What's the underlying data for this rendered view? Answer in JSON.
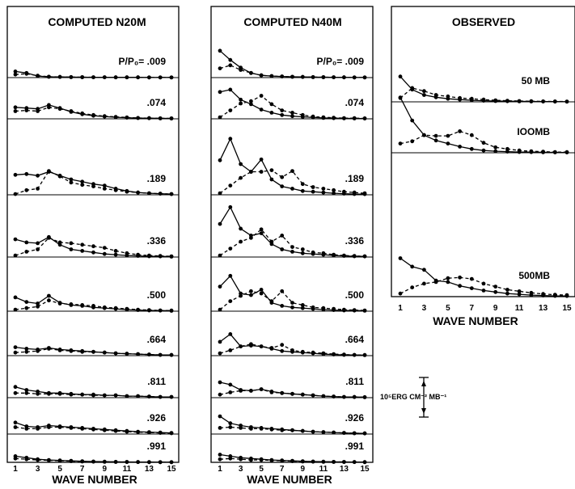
{
  "chart_data": [
    {
      "type": "line",
      "title": "COMPUTED N20M",
      "xlabel": "WAVE NUMBER",
      "x_ticks": [
        "1",
        "3",
        "5",
        "7",
        "9",
        "11",
        "13",
        "15"
      ],
      "x": [
        1,
        2,
        3,
        4,
        5,
        6,
        7,
        8,
        9,
        10,
        11,
        12,
        13,
        14,
        15
      ],
      "panels": [
        {
          "label": "P/P₀= .009",
          "solid": [
            0.8,
            0.6,
            0.2,
            0.1,
            0.08,
            0.06,
            0.05,
            0.04,
            0.04,
            0.03,
            0.03,
            0.03,
            0.02,
            0.02,
            0.02
          ],
          "dashed": [
            0.4,
            0.5,
            0.25,
            0.12,
            0.08,
            0.06,
            0.05,
            0.04,
            0.04,
            0.03,
            0.03,
            0.03,
            0.02,
            0.02,
            0.02
          ]
        },
        {
          "label": ".074",
          "solid": [
            1.5,
            1.4,
            1.3,
            1.8,
            1.4,
            0.9,
            0.6,
            0.4,
            0.3,
            0.2,
            0.15,
            0.1,
            0.08,
            0.06,
            0.05
          ],
          "dashed": [
            1.0,
            1.1,
            1.0,
            1.5,
            1.3,
            1.0,
            0.7,
            0.5,
            0.35,
            0.25,
            0.18,
            0.12,
            0.08,
            0.06,
            0.05
          ]
        },
        {
          "label": ".189",
          "solid": [
            2.6,
            2.7,
            2.5,
            3.0,
            2.5,
            2.0,
            1.7,
            1.4,
            1.2,
            0.8,
            0.5,
            0.3,
            0.2,
            0.15,
            0.1
          ],
          "dashed": [
            0.1,
            0.6,
            0.8,
            3.1,
            2.4,
            1.6,
            1.3,
            1.1,
            0.8,
            0.6,
            0.4,
            0.3,
            0.2,
            0.15,
            0.1
          ]
        },
        {
          "label": ".336",
          "solid": [
            2.3,
            1.9,
            1.8,
            2.6,
            1.6,
            1.0,
            0.8,
            0.6,
            0.4,
            0.3,
            0.2,
            0.15,
            0.1,
            0.08,
            0.05
          ],
          "dashed": [
            0.2,
            0.7,
            1.0,
            2.5,
            1.9,
            1.8,
            1.6,
            1.4,
            1.2,
            0.8,
            0.5,
            0.3,
            0.2,
            0.15,
            0.1
          ]
        },
        {
          "label": ".500",
          "solid": [
            1.8,
            1.2,
            1.0,
            2.0,
            1.1,
            0.8,
            0.7,
            0.5,
            0.4,
            0.3,
            0.2,
            0.15,
            0.1,
            0.08,
            0.05
          ],
          "dashed": [
            0.2,
            0.4,
            0.6,
            1.4,
            1.0,
            0.9,
            0.8,
            0.7,
            0.5,
            0.4,
            0.3,
            0.2,
            0.15,
            0.1,
            0.08
          ]
        },
        {
          "label": ".664",
          "solid": [
            1.1,
            0.9,
            0.8,
            1.0,
            0.8,
            0.7,
            0.6,
            0.5,
            0.4,
            0.3,
            0.25,
            0.2,
            0.15,
            0.1,
            0.08
          ],
          "dashed": [
            0.4,
            0.5,
            0.6,
            0.9,
            0.7,
            0.6,
            0.5,
            0.5,
            0.4,
            0.3,
            0.25,
            0.2,
            0.15,
            0.1,
            0.08
          ]
        },
        {
          "label": ".811",
          "solid": [
            1.4,
            1.0,
            0.8,
            0.6,
            0.6,
            0.5,
            0.4,
            0.4,
            0.3,
            0.3,
            0.2,
            0.2,
            0.15,
            0.1,
            0.1
          ],
          "dashed": [
            0.6,
            0.6,
            0.5,
            0.5,
            0.5,
            0.4,
            0.4,
            0.3,
            0.3,
            0.3,
            0.2,
            0.2,
            0.15,
            0.1,
            0.1
          ]
        },
        {
          "label": ".926",
          "solid": [
            1.5,
            1.0,
            0.9,
            1.1,
            1.0,
            0.9,
            0.8,
            0.7,
            0.6,
            0.5,
            0.4,
            0.3,
            0.25,
            0.2,
            0.15
          ],
          "dashed": [
            0.9,
            0.7,
            0.7,
            0.9,
            0.9,
            0.8,
            0.7,
            0.6,
            0.5,
            0.4,
            0.3,
            0.25,
            0.2,
            0.15,
            0.1
          ]
        },
        {
          "label": ".991",
          "solid": [
            0.8,
            0.6,
            0.4,
            0.3,
            0.25,
            0.2,
            0.15,
            0.1,
            0.08,
            0.06,
            0.05,
            0.04,
            0.03,
            0.02,
            0.02
          ],
          "dashed": [
            0.5,
            0.4,
            0.3,
            0.25,
            0.2,
            0.15,
            0.1,
            0.08,
            0.06,
            0.05,
            0.04,
            0.03,
            0.02,
            0.02,
            0.02
          ]
        }
      ]
    },
    {
      "type": "line",
      "title": "COMPUTED N40M",
      "xlabel": "WAVE NUMBER",
      "x_ticks": [
        "1",
        "3",
        "5",
        "7",
        "9",
        "11",
        "13",
        "15"
      ],
      "x": [
        1,
        2,
        3,
        4,
        5,
        6,
        7,
        8,
        9,
        10,
        11,
        12,
        13,
        14,
        15
      ],
      "panels": [
        {
          "label": "P/P₀= .009",
          "solid": [
            3.5,
            2.3,
            1.3,
            0.6,
            0.3,
            0.2,
            0.15,
            0.1,
            0.08,
            0.06,
            0.05,
            0.04,
            0.03,
            0.02,
            0.02
          ],
          "dashed": [
            1.2,
            1.6,
            1.0,
            0.6,
            0.3,
            0.2,
            0.15,
            0.1,
            0.08,
            0.06,
            0.05,
            0.04,
            0.03,
            0.02,
            0.02
          ]
        },
        {
          "label": ".074",
          "solid": [
            3.5,
            3.8,
            2.5,
            1.9,
            1.2,
            0.8,
            0.5,
            0.35,
            0.25,
            0.18,
            0.12,
            0.08,
            0.06,
            0.05,
            0.04
          ],
          "dashed": [
            0.2,
            1.1,
            2.0,
            2.3,
            3.0,
            1.9,
            1.1,
            0.8,
            0.5,
            0.3,
            0.2,
            0.15,
            0.1,
            0.08,
            0.06
          ]
        },
        {
          "label": ".189",
          "solid": [
            4.5,
            7.3,
            4.0,
            3.0,
            4.6,
            2.0,
            1.1,
            0.8,
            0.5,
            0.4,
            0.3,
            0.2,
            0.15,
            0.1,
            0.08
          ],
          "dashed": [
            0.2,
            1.2,
            2.2,
            3.0,
            3.0,
            3.2,
            2.3,
            3.1,
            1.4,
            1.0,
            0.8,
            0.6,
            0.4,
            0.3,
            0.2
          ]
        },
        {
          "label": ".336",
          "solid": [
            4.3,
            6.5,
            3.7,
            2.8,
            3.1,
            1.7,
            1.0,
            0.7,
            0.5,
            0.4,
            0.3,
            0.2,
            0.15,
            0.1,
            0.08
          ],
          "dashed": [
            0.2,
            1.1,
            2.0,
            2.5,
            3.6,
            2.0,
            2.8,
            1.3,
            1.0,
            0.6,
            0.5,
            0.3,
            0.2,
            0.15,
            0.1
          ]
        },
        {
          "label": ".500",
          "solid": [
            3.2,
            4.6,
            2.3,
            2.1,
            2.8,
            1.1,
            0.7,
            0.5,
            0.4,
            0.3,
            0.2,
            0.15,
            0.1,
            0.08,
            0.06
          ],
          "dashed": [
            0.2,
            1.3,
            2.0,
            2.6,
            2.3,
            1.3,
            2.6,
            1.1,
            0.8,
            0.5,
            0.4,
            0.3,
            0.2,
            0.15,
            0.1
          ]
        },
        {
          "label": ".664",
          "solid": [
            1.8,
            2.8,
            1.2,
            1.3,
            1.2,
            0.9,
            0.6,
            0.5,
            0.4,
            0.3,
            0.2,
            0.15,
            0.1,
            0.08,
            0.06
          ],
          "dashed": [
            0.3,
            0.7,
            1.2,
            1.5,
            1.2,
            1.0,
            1.4,
            0.7,
            0.5,
            0.4,
            0.3,
            0.2,
            0.15,
            0.1,
            0.08
          ]
        },
        {
          "label": ".811",
          "solid": [
            2.0,
            1.7,
            1.0,
            0.9,
            1.1,
            0.8,
            0.6,
            0.5,
            0.4,
            0.3,
            0.2,
            0.15,
            0.1,
            0.08,
            0.06
          ],
          "dashed": [
            0.4,
            0.7,
            0.9,
            0.9,
            1.1,
            0.7,
            0.6,
            0.5,
            0.4,
            0.3,
            0.2,
            0.15,
            0.1,
            0.08,
            0.06
          ]
        },
        {
          "label": ".926",
          "solid": [
            2.3,
            1.4,
            1.1,
            0.9,
            0.8,
            0.7,
            0.6,
            0.5,
            0.4,
            0.3,
            0.25,
            0.2,
            0.15,
            0.1,
            0.08
          ],
          "dashed": [
            0.8,
            0.9,
            0.8,
            0.7,
            0.7,
            0.6,
            0.5,
            0.5,
            0.4,
            0.3,
            0.25,
            0.2,
            0.15,
            0.1,
            0.08
          ]
        },
        {
          "label": ".991",
          "solid": [
            1.0,
            0.8,
            0.6,
            0.5,
            0.4,
            0.3,
            0.25,
            0.2,
            0.15,
            0.1,
            0.08,
            0.06,
            0.05,
            0.04,
            0.03
          ],
          "dashed": [
            0.4,
            0.5,
            0.4,
            0.3,
            0.3,
            0.25,
            0.2,
            0.15,
            0.1,
            0.08,
            0.06,
            0.05,
            0.04,
            0.03,
            0.02
          ]
        }
      ]
    },
    {
      "type": "line",
      "title": "OBSERVED",
      "xlabel": "WAVE NUMBER",
      "x_ticks": [
        "1",
        "3",
        "5",
        "7",
        "9",
        "11",
        "13",
        "15"
      ],
      "x": [
        1,
        2,
        3,
        4,
        5,
        6,
        7,
        8,
        9,
        10,
        11,
        12,
        13,
        14,
        15
      ],
      "panels": [
        {
          "label": "50 MB",
          "solid": [
            3.3,
            1.6,
            0.9,
            0.6,
            0.4,
            0.3,
            0.2,
            0.15,
            0.1,
            0.08,
            0.06,
            0.05,
            0.04,
            0.03,
            0.02
          ],
          "dashed": [
            0.5,
            1.8,
            1.4,
            0.9,
            0.7,
            0.5,
            0.4,
            0.3,
            0.2,
            0.15,
            0.1,
            0.08,
            0.06,
            0.05,
            0.04
          ]
        },
        {
          "label": "IOOMB",
          "solid": [
            7.2,
            4.2,
            2.3,
            1.6,
            1.2,
            0.8,
            0.5,
            0.3,
            0.2,
            0.15,
            0.1,
            0.08,
            0.06,
            0.05,
            0.04
          ],
          "dashed": [
            1.2,
            1.5,
            2.3,
            2.2,
            2.2,
            2.8,
            2.3,
            1.3,
            0.7,
            0.5,
            0.3,
            0.2,
            0.15,
            0.1,
            0.08
          ]
        },
        {
          "label": "500MB",
          "solid": [
            5.0,
            3.9,
            3.5,
            2.1,
            1.9,
            1.4,
            1.1,
            0.8,
            0.6,
            0.4,
            0.3,
            0.2,
            0.15,
            0.1,
            0.08
          ],
          "dashed": [
            0.4,
            1.2,
            1.7,
            1.9,
            2.4,
            2.5,
            2.3,
            1.7,
            1.3,
            0.9,
            0.7,
            0.5,
            0.35,
            0.25,
            0.2
          ]
        }
      ]
    }
  ],
  "scale_bar": {
    "label": "10⁵ERG CM⁻² MB⁻¹",
    "value": 1
  }
}
